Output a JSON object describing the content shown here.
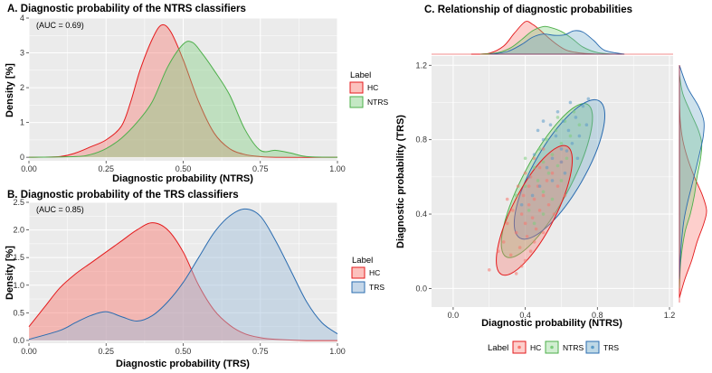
{
  "chart_data": [
    {
      "type": "area",
      "title": "A. Diagnostic probability of the NTRS classifiers",
      "annotation": "(AUC = 0.69)",
      "xlabel": "Diagnostic probability (NTRS)",
      "ylabel": "Density [%]",
      "xlim": [
        0,
        1
      ],
      "ylim": [
        -0.1,
        4
      ],
      "xticks": [
        "0.00",
        "0.25",
        "0.50",
        "0.75",
        "1.00"
      ],
      "xtick_values": [
        0,
        0.25,
        0.5,
        0.75,
        1
      ],
      "yticks": [
        "0",
        "1",
        "2",
        "3",
        "4"
      ],
      "ytick_values": [
        0,
        1,
        2,
        3,
        4
      ],
      "legend": {
        "title": "Label",
        "position": "right",
        "entries": [
          "HC",
          "NTRS"
        ]
      },
      "series": [
        {
          "name": "HC",
          "fill": "#F8766D",
          "stroke": "#E41A1C",
          "x": [
            0,
            0.1,
            0.15,
            0.2,
            0.25,
            0.3,
            0.33,
            0.36,
            0.4,
            0.43,
            0.46,
            0.5,
            0.55,
            0.6,
            0.65,
            0.7,
            0.75,
            0.8,
            1.0
          ],
          "y": [
            0,
            0.02,
            0.12,
            0.3,
            0.5,
            0.9,
            1.6,
            2.5,
            3.4,
            3.8,
            3.6,
            2.8,
            1.6,
            0.7,
            0.25,
            0.08,
            0.02,
            0,
            0
          ]
        },
        {
          "name": "NTRS",
          "fill": "#7CCD7C",
          "stroke": "#4DAF4A",
          "x": [
            0,
            0.15,
            0.2,
            0.25,
            0.3,
            0.35,
            0.4,
            0.45,
            0.5,
            0.53,
            0.56,
            0.6,
            0.65,
            0.7,
            0.75,
            0.8,
            0.85,
            0.9,
            1.0
          ],
          "y": [
            0,
            0.02,
            0.08,
            0.25,
            0.55,
            1.0,
            1.6,
            2.6,
            3.25,
            3.3,
            3.0,
            2.5,
            1.8,
            0.8,
            0.2,
            0.2,
            0.12,
            0.02,
            0
          ]
        }
      ]
    },
    {
      "type": "area",
      "title": "B. Diagnostic probability of the TRS classifiers",
      "annotation": "(AUC = 0.85)",
      "xlabel": "Diagnostic probability (TRS)",
      "ylabel": "Density [%]",
      "xlim": [
        0,
        1
      ],
      "ylim": [
        -0.05,
        2.5
      ],
      "xticks": [
        "0.00",
        "0.25",
        "0.50",
        "0.75",
        "1.00"
      ],
      "xtick_values": [
        0,
        0.25,
        0.5,
        0.75,
        1
      ],
      "yticks": [
        "0.0",
        "0.5",
        "1.0",
        "1.5",
        "2.0",
        "2.5"
      ],
      "ytick_values": [
        0,
        0.5,
        1,
        1.5,
        2,
        2.5
      ],
      "legend": {
        "title": "Label",
        "position": "right",
        "entries": [
          "HC",
          "TRS"
        ]
      },
      "series": [
        {
          "name": "HC",
          "fill": "#F8766D",
          "stroke": "#E41A1C",
          "x": [
            0,
            0.05,
            0.1,
            0.15,
            0.2,
            0.25,
            0.3,
            0.35,
            0.4,
            0.45,
            0.5,
            0.55,
            0.6,
            0.65,
            0.7,
            0.75,
            0.8,
            0.9,
            1.0
          ],
          "y": [
            0.25,
            0.6,
            0.95,
            1.2,
            1.4,
            1.6,
            1.8,
            2.0,
            2.13,
            2.0,
            1.6,
            1.0,
            0.55,
            0.28,
            0.12,
            0.05,
            0.02,
            0,
            0
          ]
        },
        {
          "name": "TRS",
          "fill": "#9EBCDA",
          "stroke": "#2B6CB0",
          "x": [
            0,
            0.1,
            0.15,
            0.2,
            0.25,
            0.3,
            0.35,
            0.4,
            0.45,
            0.5,
            0.55,
            0.6,
            0.65,
            0.7,
            0.75,
            0.8,
            0.85,
            0.9,
            0.95,
            1.0
          ],
          "y": [
            0.02,
            0.18,
            0.32,
            0.45,
            0.52,
            0.43,
            0.35,
            0.45,
            0.7,
            1.05,
            1.5,
            1.95,
            2.25,
            2.38,
            2.25,
            1.8,
            1.25,
            0.7,
            0.32,
            0.12
          ]
        }
      ]
    },
    {
      "type": "scatter",
      "title": "C. Relationship of diagnostic probabilities",
      "xlabel": "Diagnostic probability (NTRS)",
      "ylabel": "Diagnostic probability (TRS)",
      "xlim": [
        -0.12,
        1.22
      ],
      "ylim": [
        -0.1,
        1.25
      ],
      "xticks": [
        "0.0",
        "0.4",
        "0.8",
        "1.2"
      ],
      "xtick_values": [
        0,
        0.4,
        0.8,
        1.2
      ],
      "yticks": [
        "0.0",
        "0.4",
        "0.8",
        "1.2"
      ],
      "ytick_values": [
        0,
        0.4,
        0.8,
        1.2
      ],
      "legend": {
        "title": "Label",
        "position": "bottom",
        "entries": [
          "HC",
          "NTRS",
          "TRS"
        ]
      },
      "ellipses": [
        {
          "name": "NTRS",
          "cx": 0.52,
          "cy": 0.58,
          "rx": 0.48,
          "ry": 0.13,
          "angle_deg": 62,
          "fill": "#7CCD7C",
          "stroke": "#4DAF4A"
        },
        {
          "name": "TRS",
          "cx": 0.59,
          "cy": 0.64,
          "rx": 0.44,
          "ry": 0.14,
          "angle_deg": 60,
          "fill": "#6FA8C8",
          "stroke": "#2B6CB0"
        },
        {
          "name": "HC",
          "cx": 0.45,
          "cy": 0.42,
          "rx": 0.4,
          "ry": 0.12,
          "angle_deg": 63,
          "fill": "#F8766D",
          "stroke": "#E41A1C"
        }
      ],
      "points": [
        {
          "name": "HC",
          "color": "#F8766D",
          "x": [
            0.2,
            0.25,
            0.28,
            0.3,
            0.32,
            0.33,
            0.35,
            0.36,
            0.37,
            0.38,
            0.38,
            0.39,
            0.4,
            0.4,
            0.41,
            0.42,
            0.42,
            0.43,
            0.43,
            0.44,
            0.45,
            0.45,
            0.46,
            0.47,
            0.48,
            0.48,
            0.5,
            0.5,
            0.52,
            0.53,
            0.55,
            0.56,
            0.58,
            0.6,
            0.62,
            0.35,
            0.4,
            0.45,
            0.3,
            0.5
          ],
          "y": [
            0.1,
            0.2,
            0.25,
            0.35,
            0.18,
            0.42,
            0.3,
            0.55,
            0.22,
            0.4,
            0.12,
            0.5,
            0.35,
            0.62,
            0.28,
            0.45,
            0.55,
            0.2,
            0.6,
            0.38,
            0.48,
            0.7,
            0.32,
            0.55,
            0.42,
            0.65,
            0.5,
            0.3,
            0.58,
            0.45,
            0.62,
            0.4,
            0.55,
            0.68,
            0.5,
            0.08,
            0.15,
            0.25,
            0.48,
            0.75
          ]
        },
        {
          "name": "NTRS",
          "color": "#7CCD7C",
          "x": [
            0.35,
            0.4,
            0.42,
            0.45,
            0.47,
            0.48,
            0.5,
            0.5,
            0.52,
            0.53,
            0.55,
            0.55,
            0.57,
            0.58,
            0.6,
            0.6,
            0.62,
            0.63,
            0.65,
            0.67,
            0.7,
            0.5,
            0.45,
            0.58,
            0.4
          ],
          "y": [
            0.5,
            0.55,
            0.42,
            0.65,
            0.58,
            0.75,
            0.52,
            0.68,
            0.8,
            0.62,
            0.72,
            0.48,
            0.85,
            0.66,
            0.78,
            0.58,
            0.9,
            0.7,
            0.82,
            0.95,
            0.88,
            0.4,
            0.35,
            0.92,
            0.7
          ]
        },
        {
          "name": "TRS",
          "color": "#5B9BC8",
          "x": [
            0.38,
            0.42,
            0.45,
            0.48,
            0.5,
            0.52,
            0.54,
            0.55,
            0.57,
            0.58,
            0.6,
            0.61,
            0.62,
            0.64,
            0.65,
            0.66,
            0.68,
            0.7,
            0.72,
            0.74,
            0.75,
            0.5,
            0.55,
            0.6,
            0.44,
            0.47,
            0.63,
            0.69
          ],
          "y": [
            0.45,
            0.6,
            0.72,
            0.55,
            0.8,
            0.65,
            0.88,
            0.7,
            0.82,
            0.95,
            0.75,
            0.9,
            0.62,
            0.85,
            1.0,
            0.78,
            0.92,
            0.82,
            0.98,
            0.88,
            1.02,
            0.9,
            0.58,
            0.68,
            0.5,
            0.85,
            0.74,
            0.7
          ]
        }
      ],
      "marginal_x": [
        {
          "name": "HC",
          "fill": "#F8766D",
          "stroke": "#E41A1C",
          "x": [
            0.1,
            0.2,
            0.28,
            0.34,
            0.4,
            0.44,
            0.48,
            0.53,
            0.58,
            0.63,
            0.7,
            0.8
          ],
          "y": [
            0,
            0.03,
            0.25,
            0.65,
            1.0,
            0.92,
            0.75,
            0.5,
            0.28,
            0.12,
            0.04,
            0
          ]
        },
        {
          "name": "NTRS",
          "fill": "#7CCD7C",
          "stroke": "#4DAF4A",
          "x": [
            0.15,
            0.25,
            0.32,
            0.38,
            0.44,
            0.5,
            0.54,
            0.6,
            0.66,
            0.72,
            0.8,
            0.9
          ],
          "y": [
            0,
            0.05,
            0.2,
            0.45,
            0.72,
            0.85,
            0.82,
            0.7,
            0.48,
            0.22,
            0.05,
            0
          ]
        },
        {
          "name": "TRS",
          "fill": "#6FA8C8",
          "stroke": "#2B6CB0",
          "x": [
            0.2,
            0.3,
            0.38,
            0.44,
            0.5,
            0.56,
            0.62,
            0.67,
            0.72,
            0.78,
            0.84,
            0.95
          ],
          "y": [
            0,
            0.08,
            0.3,
            0.52,
            0.62,
            0.58,
            0.6,
            0.72,
            0.68,
            0.42,
            0.12,
            0
          ]
        }
      ],
      "marginal_y": [
        {
          "name": "HC",
          "fill": "#F8766D",
          "stroke": "#E41A1C",
          "y": [
            -0.05,
            0.05,
            0.15,
            0.25,
            0.35,
            0.42,
            0.5,
            0.6,
            0.7,
            0.8,
            0.9,
            1.0
          ],
          "x": [
            0,
            0.2,
            0.45,
            0.65,
            0.9,
            1.0,
            0.85,
            0.55,
            0.3,
            0.12,
            0.03,
            0
          ]
        },
        {
          "name": "NTRS",
          "fill": "#7CCD7C",
          "stroke": "#4DAF4A",
          "y": [
            0.0,
            0.15,
            0.3,
            0.4,
            0.5,
            0.6,
            0.7,
            0.78,
            0.85,
            0.95,
            1.05,
            1.15
          ],
          "x": [
            0,
            0.05,
            0.2,
            0.4,
            0.55,
            0.65,
            0.78,
            0.82,
            0.7,
            0.4,
            0.12,
            0
          ]
        },
        {
          "name": "TRS",
          "fill": "#6FA8C8",
          "stroke": "#2B6CB0",
          "y": [
            0.05,
            0.2,
            0.35,
            0.45,
            0.55,
            0.65,
            0.75,
            0.82,
            0.9,
            0.98,
            1.08,
            1.2
          ],
          "x": [
            0,
            0.05,
            0.15,
            0.28,
            0.45,
            0.62,
            0.78,
            0.88,
            0.9,
            0.7,
            0.3,
            0
          ]
        }
      ]
    }
  ]
}
